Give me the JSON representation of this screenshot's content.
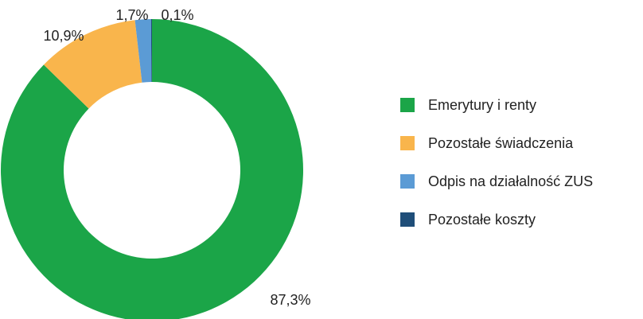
{
  "chart_data": {
    "type": "donut",
    "categories": [
      "Emerytury i renty",
      "Pozostałe świadczenia",
      "Odpis na działalność ZUS",
      "Pozostałe koszty"
    ],
    "values": [
      87.3,
      10.9,
      1.7,
      0.1
    ],
    "value_labels": [
      "87,3%",
      "10,9%",
      "1,7%",
      "0,1%"
    ],
    "colors": [
      "#1ba548",
      "#f9b54c",
      "#5b9bd5",
      "#1f4e79"
    ],
    "legend": "right"
  }
}
